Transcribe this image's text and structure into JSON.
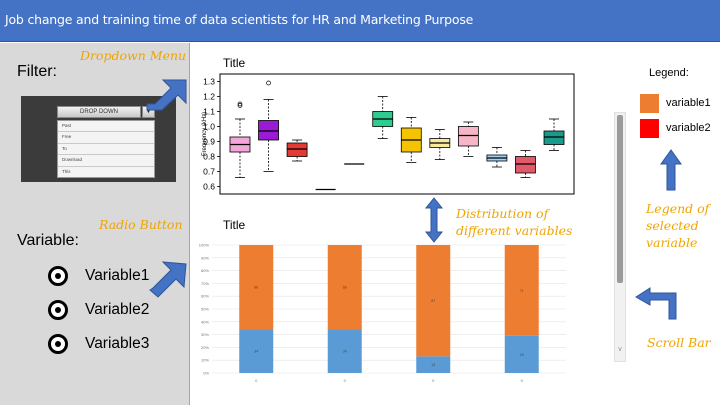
{
  "header": {
    "title": "Job change and training time of data scientists for HR and Marketing Purpose"
  },
  "filter": {
    "label": "Filter:",
    "dropdown_label": "DROP DOWN",
    "options": [
      "Past",
      "Free",
      "To",
      "Download",
      "This"
    ]
  },
  "variables": {
    "label": "Variable:",
    "items": [
      {
        "label": "Variable1"
      },
      {
        "label": "Variable2"
      },
      {
        "label": "Variable3"
      }
    ]
  },
  "annotations": {
    "dropdown": "Dropdown Menu",
    "radio": "Radio Button",
    "distribution": [
      "Distribution of",
      "different variables"
    ],
    "legend": [
      "Legend of",
      "selected",
      "variable"
    ],
    "scroll": "Scroll Bar"
  },
  "legend": {
    "title": "Legend:",
    "items": [
      {
        "label": "variable1",
        "color": "#ed7d31"
      },
      {
        "label": "variable2",
        "color": "#ff0000"
      }
    ]
  },
  "colors": {
    "header": "#4472c4",
    "annotation": "#f0a400",
    "arrow": "#4472c4"
  },
  "icons": {
    "dropdown_arrow": "triangle-down-icon",
    "scroll_down": "chevron-down-icon"
  },
  "chart_data": [
    {
      "type": "boxplot",
      "title": "Title",
      "ylabel": "Frequency (kHz)",
      "ylim": [
        0.55,
        1.35
      ],
      "yticks": [
        "0.6",
        "0.7",
        "0.8",
        "0.9",
        "1.0",
        "1.1",
        "1.2",
        "1.3"
      ],
      "ytick_values": [
        0.6,
        0.7,
        0.8,
        0.9,
        1.0,
        1.1,
        1.2,
        1.3
      ],
      "boxes": [
        {
          "min": 0.66,
          "q1": 0.83,
          "median": 0.88,
          "q3": 0.93,
          "max": 1.05,
          "outliers": [
            1.14,
            1.15
          ],
          "color": "#f4a6d8"
        },
        {
          "min": 0.7,
          "q1": 0.91,
          "median": 0.97,
          "q3": 1.04,
          "max": 1.18,
          "outliers": [
            1.29
          ],
          "color": "#9b1ad6"
        },
        {
          "min": 0.77,
          "q1": 0.8,
          "median": 0.85,
          "q3": 0.89,
          "max": 0.91,
          "outliers": [],
          "color": "#e53935"
        },
        {
          "min": 0.58,
          "q1": 0.58,
          "median": 0.58,
          "q3": 0.58,
          "max": 0.58,
          "outliers": [],
          "color": "#ffffff"
        },
        {
          "min": 0.75,
          "q1": 0.75,
          "median": 0.75,
          "q3": 0.75,
          "max": 0.75,
          "outliers": [],
          "color": "#ffffff"
        },
        {
          "min": 0.92,
          "q1": 1.0,
          "median": 1.05,
          "q3": 1.1,
          "max": 1.2,
          "outliers": [],
          "color": "#2ecc8f"
        },
        {
          "min": 0.76,
          "q1": 0.83,
          "median": 0.91,
          "q3": 0.99,
          "max": 1.06,
          "outliers": [],
          "color": "#f5c400"
        },
        {
          "min": 0.78,
          "q1": 0.86,
          "median": 0.89,
          "q3": 0.92,
          "max": 0.98,
          "outliers": [],
          "color": "#f9e8a0"
        },
        {
          "min": 0.8,
          "q1": 0.87,
          "median": 0.94,
          "q3": 1.0,
          "max": 1.03,
          "outliers": [],
          "color": "#f7b6c8"
        },
        {
          "min": 0.73,
          "q1": 0.77,
          "median": 0.79,
          "q3": 0.81,
          "max": 0.86,
          "outliers": [],
          "color": "#9fd3f2"
        },
        {
          "min": 0.66,
          "q1": 0.69,
          "median": 0.75,
          "q3": 0.8,
          "max": 0.84,
          "outliers": [],
          "color": "#e05a6a"
        },
        {
          "min": 0.84,
          "q1": 0.88,
          "median": 0.93,
          "q3": 0.97,
          "max": 1.05,
          "outliers": [],
          "color": "#1a9a8a"
        }
      ]
    },
    {
      "type": "bar",
      "stacked": true,
      "title": "Title",
      "yticks": [
        "0%",
        "10%",
        "20%",
        "30%",
        "40%",
        "50%",
        "60%",
        "70%",
        "80%",
        "90%",
        "100%"
      ],
      "categories": [
        "0",
        "0",
        "0",
        "0"
      ],
      "ylim": [
        0,
        100
      ],
      "series": [
        {
          "values": [
            34,
            34,
            13,
            29
          ],
          "labels": [
            "34",
            "34",
            "13",
            "29"
          ],
          "color": "#5b9bd5"
        },
        {
          "values": [
            66,
            66,
            87,
            71
          ],
          "labels": [
            "66",
            "66",
            "87",
            "71"
          ],
          "color": "#ed7d31"
        }
      ]
    }
  ]
}
